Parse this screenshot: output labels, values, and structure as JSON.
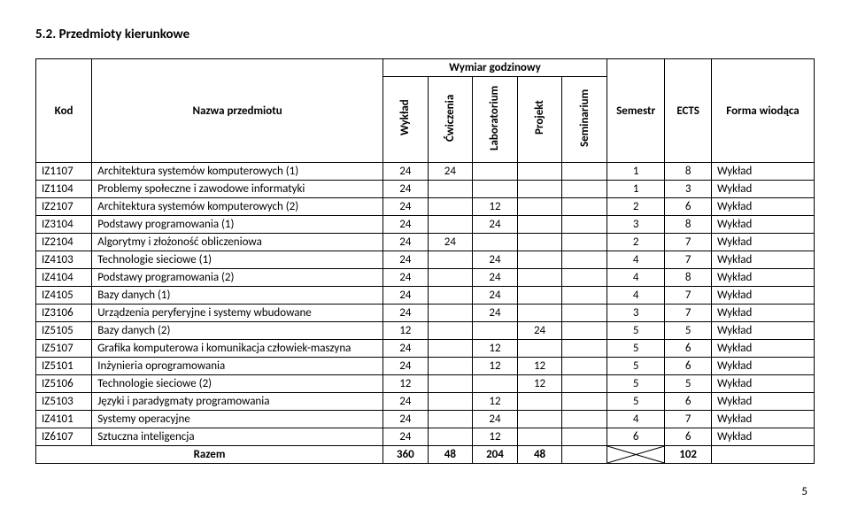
{
  "section_title": "5.2. Przedmioty kierunkowe",
  "headers": {
    "kod": "Kod",
    "nazwa": "Nazwa przedmiotu",
    "wymiar": "Wymiar godzinowy",
    "semestr": "Semestr",
    "ects": "ECTS",
    "forma": "Forma wiodąca",
    "dims": [
      "Wykład",
      "Ćwiczenia",
      "Laboratorium",
      "Projekt",
      "Seminarium"
    ]
  },
  "rows": [
    {
      "kod": "IZ1107",
      "nazwa": "Architektura systemów komputerowych (1)",
      "d": [
        "24",
        "24",
        "",
        "",
        ""
      ],
      "sem": "1",
      "ects": "8",
      "forma": "Wykład"
    },
    {
      "kod": "IZ1104",
      "nazwa": "Problemy społeczne i zawodowe informatyki",
      "d": [
        "24",
        "",
        "",
        "",
        ""
      ],
      "sem": "1",
      "ects": "3",
      "forma": "Wykład"
    },
    {
      "kod": "IZ2107",
      "nazwa": "Architektura systemów komputerowych (2)",
      "d": [
        "24",
        "",
        "12",
        "",
        ""
      ],
      "sem": "2",
      "ects": "6",
      "forma": "Wykład"
    },
    {
      "kod": "IZ3104",
      "nazwa": "Podstawy programowania (1)",
      "d": [
        "24",
        "",
        "24",
        "",
        ""
      ],
      "sem": "3",
      "ects": "8",
      "forma": "Wykład"
    },
    {
      "kod": "IZ2104",
      "nazwa": "Algorytmy i złożoność obliczeniowa",
      "d": [
        "24",
        "24",
        "",
        "",
        ""
      ],
      "sem": "2",
      "ects": "7",
      "forma": "Wykład"
    },
    {
      "kod": "IZ4103",
      "nazwa": "Technologie sieciowe (1)",
      "d": [
        "24",
        "",
        "24",
        "",
        ""
      ],
      "sem": "4",
      "ects": "7",
      "forma": "Wykład"
    },
    {
      "kod": "IZ4104",
      "nazwa": "Podstawy programowania (2)",
      "d": [
        "24",
        "",
        "24",
        "",
        ""
      ],
      "sem": "4",
      "ects": "8",
      "forma": "Wykład"
    },
    {
      "kod": "IZ4105",
      "nazwa": "Bazy danych (1)",
      "d": [
        "24",
        "",
        "24",
        "",
        ""
      ],
      "sem": "4",
      "ects": "7",
      "forma": "Wykład"
    },
    {
      "kod": "IZ3106",
      "nazwa": "Urządzenia peryferyjne i systemy wbudowane",
      "d": [
        "24",
        "",
        "24",
        "",
        ""
      ],
      "sem": "3",
      "ects": "7",
      "forma": "Wykład"
    },
    {
      "kod": "IZ5105",
      "nazwa": "Bazy danych (2)",
      "d": [
        "12",
        "",
        "",
        "24",
        ""
      ],
      "sem": "5",
      "ects": "5",
      "forma": "Wykład"
    },
    {
      "kod": "IZ5107",
      "nazwa": "Grafika komputerowa i komunikacja człowiek-maszyna",
      "d": [
        "24",
        "",
        "12",
        "",
        ""
      ],
      "sem": "5",
      "ects": "6",
      "forma": "Wykład"
    },
    {
      "kod": "IZ5101",
      "nazwa": "Inżynieria oprogramowania",
      "d": [
        "24",
        "",
        "12",
        "12",
        ""
      ],
      "sem": "5",
      "ects": "6",
      "forma": "Wykład"
    },
    {
      "kod": "IZ5106",
      "nazwa": "Technologie sieciowe (2)",
      "d": [
        "12",
        "",
        "",
        "12",
        ""
      ],
      "sem": "5",
      "ects": "5",
      "forma": "Wykład"
    },
    {
      "kod": "IZ5103",
      "nazwa": "Języki i paradygmaty programowania",
      "d": [
        "24",
        "",
        "12",
        "",
        ""
      ],
      "sem": "5",
      "ects": "6",
      "forma": "Wykład"
    },
    {
      "kod": "IZ4101",
      "nazwa": "Systemy operacyjne",
      "d": [
        "24",
        "",
        "24",
        "",
        ""
      ],
      "sem": "4",
      "ects": "7",
      "forma": "Wykład"
    },
    {
      "kod": "IZ6107",
      "nazwa": "Sztuczna inteligencja",
      "d": [
        "24",
        "",
        "12",
        "",
        ""
      ],
      "sem": "6",
      "ects": "6",
      "forma": "Wykład"
    }
  ],
  "totals": {
    "label": "Razem",
    "d": [
      "360",
      "48",
      "204",
      "48",
      ""
    ],
    "ects": "102"
  },
  "page_number": "5",
  "colors": {
    "border": "#000000",
    "bg": "#ffffff",
    "text": "#000000"
  }
}
